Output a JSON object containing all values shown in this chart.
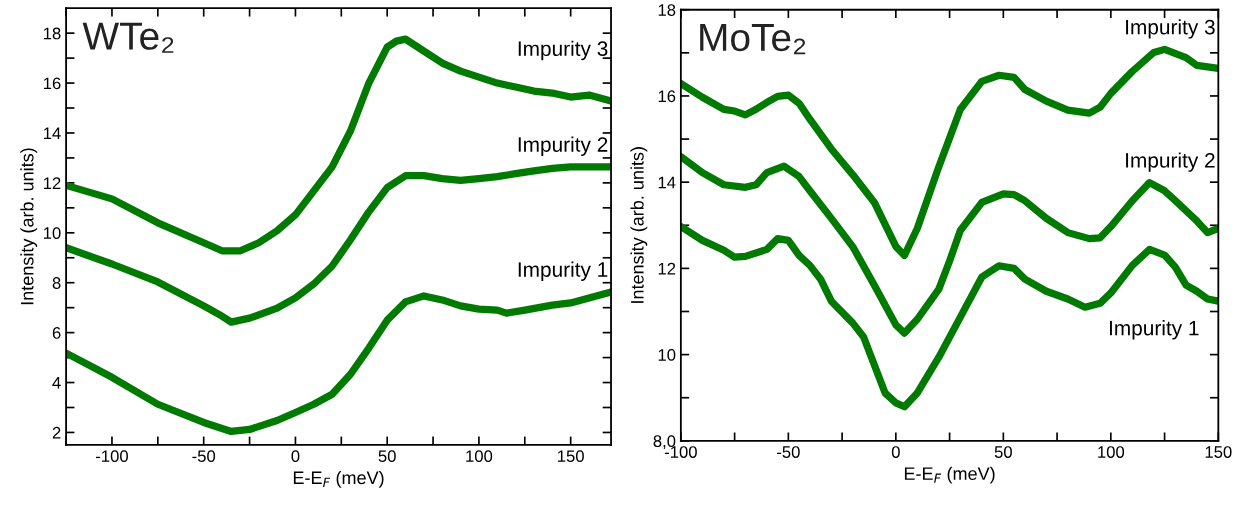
{
  "chart_data": [
    {
      "type": "line",
      "title": "WTe₂",
      "xlabel": "E-E$_{F}$ (meV)",
      "ylabel": "Intensity (arb. units)",
      "xlim": [
        -125,
        172
      ],
      "ylim": [
        1.5,
        19
      ],
      "xticks": [
        {
          "value": -125,
          "label": null
        },
        -100,
        {
          "value": -75,
          "label": null
        },
        -50,
        {
          "value": -25,
          "label": null
        },
        0,
        {
          "value": 25,
          "label": null
        },
        50,
        {
          "value": 75,
          "label": null
        },
        100,
        {
          "value": 125,
          "label": null
        },
        150
      ],
      "yticks": [
        2,
        {
          "value": 3,
          "label": null
        },
        4,
        {
          "value": 5,
          "label": null
        },
        6,
        {
          "value": 7,
          "label": null
        },
        8,
        {
          "value": 9,
          "label": null
        },
        10,
        {
          "value": 11,
          "label": null
        },
        12,
        {
          "value": 13,
          "label": null
        },
        14,
        {
          "value": 15,
          "label": null
        },
        16,
        {
          "value": 17,
          "label": null
        },
        18
      ],
      "grid": false,
      "legend": false,
      "marker": "none",
      "line_style": "solid",
      "series": [
        {
          "name": "Impurity 3",
          "color": "#007a00",
          "x": [
            -125,
            -100,
            -75,
            -50,
            -40,
            -30,
            -20,
            -10,
            0,
            10,
            20,
            30,
            40,
            50,
            55,
            60,
            70,
            80,
            90,
            100,
            110,
            120,
            130,
            140,
            150,
            160,
            172
          ],
          "values": [
            11.9,
            11.36,
            10.4,
            9.6,
            9.28,
            9.28,
            9.6,
            10.08,
            10.72,
            11.68,
            12.64,
            14.08,
            16.0,
            17.44,
            17.68,
            17.76,
            17.28,
            16.8,
            16.48,
            16.24,
            16.0,
            15.84,
            15.68,
            15.6,
            15.44,
            15.52,
            15.28
          ]
        },
        {
          "name": "Impurity 2",
          "color": "#007a00",
          "x": [
            -125,
            -100,
            -75,
            -50,
            -40,
            -35,
            -25,
            -10,
            0,
            10,
            20,
            30,
            40,
            50,
            60,
            70,
            80,
            90,
            100,
            110,
            120,
            130,
            140,
            150,
            160,
            172
          ],
          "values": [
            9.4,
            8.75,
            8.03,
            7.07,
            6.66,
            6.42,
            6.58,
            6.98,
            7.39,
            7.95,
            8.67,
            9.72,
            10.84,
            11.81,
            12.29,
            12.29,
            12.17,
            12.1,
            12.17,
            12.25,
            12.37,
            12.48,
            12.58,
            12.64,
            12.64,
            12.64
          ]
        },
        {
          "name": "Impurity 1",
          "color": "#007a00",
          "x": [
            -125,
            -100,
            -75,
            -50,
            -35,
            -25,
            -10,
            0,
            10,
            20,
            30,
            40,
            50,
            60,
            70,
            80,
            90,
            100,
            110,
            115,
            125,
            140,
            150,
            160,
            172
          ],
          "values": [
            5.18,
            4.21,
            3.13,
            2.4,
            2.04,
            2.12,
            2.48,
            2.8,
            3.13,
            3.53,
            4.33,
            5.38,
            6.5,
            7.23,
            7.47,
            7.31,
            7.07,
            6.94,
            6.9,
            6.78,
            6.9,
            7.1,
            7.19,
            7.39,
            7.63
          ]
        }
      ]
    },
    {
      "type": "line",
      "title": "MoTe₂",
      "xlabel": "E-E$_{F}$ (meV)",
      "ylabel": "Intensity (arb. units)",
      "xlim": [
        -100,
        150
      ],
      "ylim": [
        8,
        18
      ],
      "xticks": [
        -100,
        {
          "value": -75,
          "label": null
        },
        -50,
        {
          "value": -25,
          "label": null
        },
        0,
        {
          "value": 25,
          "label": null
        },
        50,
        {
          "value": 75,
          "label": null
        },
        100,
        {
          "value": 125,
          "label": null
        },
        150
      ],
      "yticks": [
        {
          "value": 8,
          "label": "8,0"
        },
        {
          "value": 9,
          "label": null
        },
        10,
        {
          "value": 11,
          "label": null
        },
        12,
        {
          "value": 13,
          "label": null
        },
        14,
        {
          "value": 15,
          "label": null
        },
        16,
        {
          "value": 17,
          "label": null
        },
        18
      ],
      "grid": false,
      "legend": false,
      "marker": "none",
      "line_style": "solid",
      "series": [
        {
          "name": "Impurity 3",
          "color": "#007a00",
          "x": [
            -100,
            -90,
            -80,
            -75,
            -70,
            -65,
            -60,
            -55,
            -50,
            -45,
            -40,
            -30,
            -20,
            -10,
            0,
            4,
            10,
            20,
            30,
            40,
            48,
            55,
            60,
            70,
            80,
            90,
            95,
            100,
            110,
            120,
            125,
            135,
            140,
            150
          ],
          "values": [
            16.29,
            15.97,
            15.69,
            15.65,
            15.56,
            15.69,
            15.85,
            15.99,
            16.02,
            15.83,
            15.46,
            14.77,
            14.17,
            13.53,
            12.51,
            12.3,
            12.93,
            14.36,
            15.69,
            16.34,
            16.48,
            16.43,
            16.15,
            15.88,
            15.67,
            15.6,
            15.74,
            16.06,
            16.57,
            17.01,
            17.08,
            16.89,
            16.71,
            16.64
          ]
        },
        {
          "name": "Impurity 2",
          "color": "#007a00",
          "x": [
            -100,
            -90,
            -80,
            -70,
            -65,
            -60,
            -52,
            -45,
            -40,
            -30,
            -20,
            -10,
            0,
            4,
            10,
            20,
            25,
            30,
            40,
            50,
            55,
            60,
            70,
            80,
            90,
            95,
            100,
            110,
            118,
            125,
            130,
            140,
            145,
            150
          ],
          "values": [
            14.59,
            14.22,
            13.94,
            13.88,
            13.94,
            14.22,
            14.37,
            14.13,
            13.8,
            13.16,
            12.5,
            11.61,
            10.69,
            10.5,
            10.82,
            11.52,
            12.17,
            12.88,
            13.53,
            13.73,
            13.71,
            13.57,
            13.16,
            12.83,
            12.69,
            12.71,
            12.97,
            13.57,
            13.99,
            13.8,
            13.57,
            13.1,
            12.83,
            12.93
          ]
        },
        {
          "name": "Impurity 1",
          "color": "#007a00",
          "x": [
            -100,
            -90,
            -80,
            -75,
            -70,
            -60,
            -55,
            -50,
            -45,
            -40,
            -35,
            -30,
            -20,
            -15,
            -10,
            -5,
            0,
            4,
            10,
            20,
            30,
            40,
            48,
            55,
            60,
            70,
            80,
            88,
            95,
            100,
            110,
            118,
            125,
            130,
            135,
            140,
            145,
            150
          ],
          "values": [
            12.97,
            12.65,
            12.42,
            12.26,
            12.28,
            12.44,
            12.69,
            12.65,
            12.3,
            12.07,
            11.75,
            11.24,
            10.73,
            10.41,
            9.76,
            9.11,
            8.88,
            8.79,
            9.11,
            9.94,
            10.87,
            11.8,
            12.06,
            12.0,
            11.75,
            11.47,
            11.29,
            11.1,
            11.19,
            11.43,
            12.07,
            12.44,
            12.31,
            12.03,
            11.61,
            11.47,
            11.29,
            11.24
          ]
        }
      ]
    }
  ]
}
